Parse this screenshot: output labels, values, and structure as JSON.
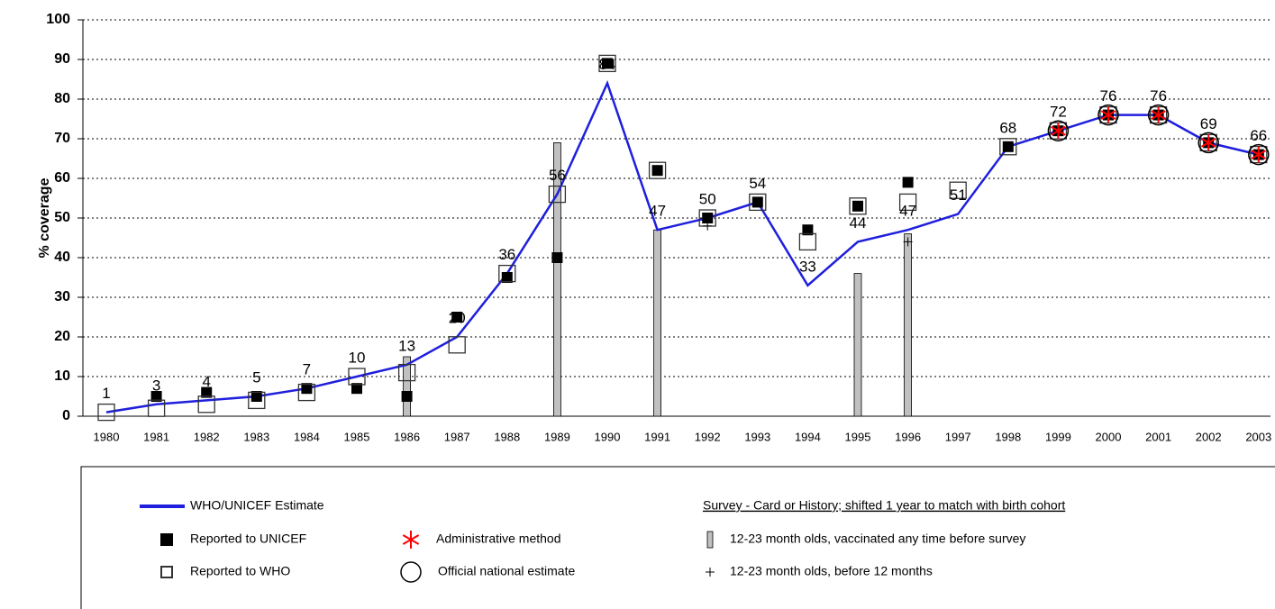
{
  "chart_data": {
    "type": "line",
    "y_label": "% coverage",
    "categories": [
      "1980",
      "1981",
      "1982",
      "1983",
      "1984",
      "1985",
      "1986",
      "1987",
      "1988",
      "1989",
      "1990",
      "1991",
      "1992",
      "1993",
      "1994",
      "1995",
      "1996",
      "1997",
      "1998",
      "1999",
      "2000",
      "2001",
      "2002",
      "2003"
    ],
    "ylim": [
      0,
      100
    ],
    "yticks": [
      0,
      10,
      20,
      30,
      40,
      50,
      60,
      70,
      80,
      90,
      100
    ],
    "grid": true,
    "legend_title": "Survey - Card or History; shifted 1 year to match with birth cohort",
    "series": [
      {
        "name": "WHO/UNICEF Estimate",
        "marker": "line",
        "color": "#1f1fdd",
        "values": [
          1,
          3,
          4,
          5,
          7,
          10,
          13,
          20,
          36,
          56,
          84,
          47,
          50,
          54,
          33,
          44,
          47,
          51,
          68,
          72,
          76,
          76,
          69,
          66
        ]
      },
      {
        "name": "Reported to UNICEF",
        "marker": "filled-square",
        "color": "#000000",
        "values": [
          null,
          5,
          6,
          5,
          7,
          7,
          5,
          25,
          35,
          40,
          89,
          62,
          50,
          54,
          47,
          53,
          59,
          null,
          68,
          72,
          76,
          76,
          69,
          66
        ]
      },
      {
        "name": "Reported to WHO",
        "marker": "open-square",
        "color": "#333333",
        "values": [
          1,
          2,
          3,
          4,
          6,
          10,
          11,
          18,
          36,
          56,
          89,
          62,
          50,
          54,
          44,
          53,
          54,
          57,
          68,
          72,
          76,
          76,
          69,
          66
        ]
      },
      {
        "name": "Administrative method",
        "marker": "asterisk",
        "color": "#ff0000",
        "values": [
          null,
          null,
          null,
          null,
          null,
          null,
          null,
          null,
          null,
          null,
          null,
          null,
          null,
          null,
          null,
          null,
          null,
          null,
          null,
          72,
          76,
          76,
          69,
          66
        ]
      },
      {
        "name": "Official national estimate",
        "marker": "circle",
        "color": "#000000",
        "values": [
          null,
          null,
          null,
          null,
          null,
          null,
          null,
          null,
          null,
          null,
          null,
          null,
          null,
          null,
          null,
          null,
          null,
          null,
          null,
          72,
          76,
          76,
          69,
          66
        ]
      },
      {
        "name": "12-23 month olds, vaccinated any time before survey",
        "marker": "bar",
        "color": "#c0c0c0",
        "values": [
          null,
          null,
          null,
          null,
          null,
          null,
          15,
          null,
          null,
          69,
          null,
          47,
          null,
          null,
          null,
          36,
          46,
          null,
          null,
          null,
          null,
          null,
          null,
          null
        ]
      },
      {
        "name": "12-23 month olds, before 12 months",
        "marker": "plus",
        "color": "#000000",
        "values": [
          null,
          null,
          null,
          null,
          null,
          null,
          null,
          null,
          null,
          null,
          null,
          null,
          48,
          null,
          null,
          null,
          44,
          null,
          null,
          null,
          null,
          null,
          null,
          null
        ]
      }
    ]
  }
}
